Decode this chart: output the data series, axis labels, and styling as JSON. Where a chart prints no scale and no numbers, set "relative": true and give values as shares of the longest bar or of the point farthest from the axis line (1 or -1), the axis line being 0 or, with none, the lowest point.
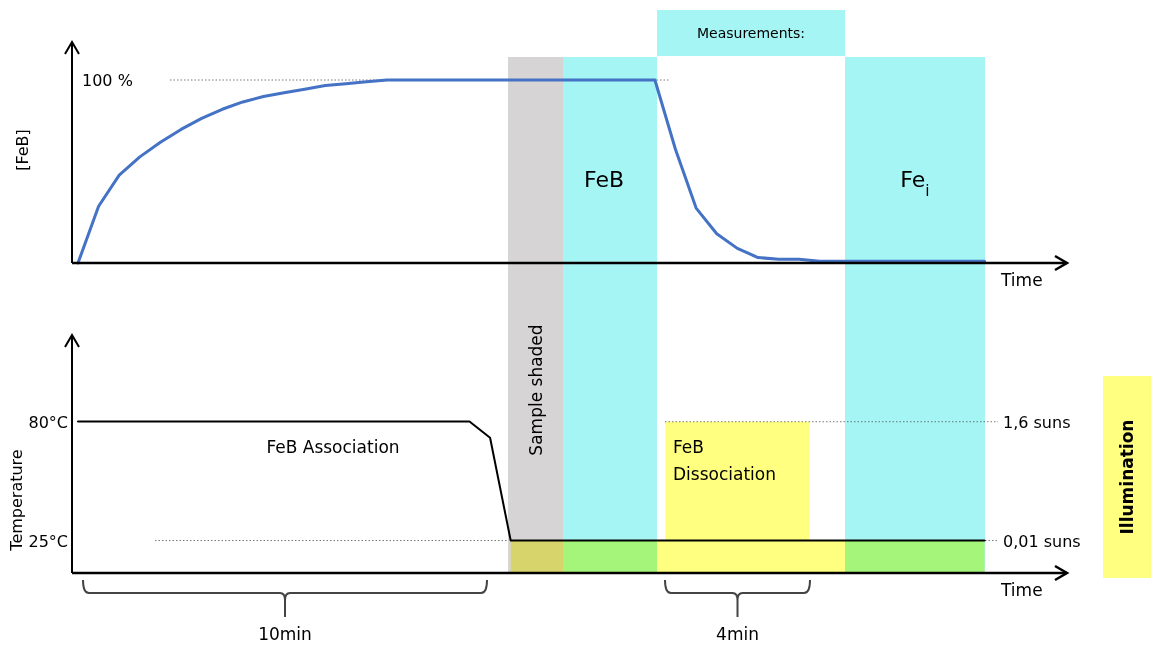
{
  "chart_data": [
    {
      "type": "line",
      "relative": true,
      "ylabel": "[FeB]",
      "xlabel": "Time",
      "categories": [
        null,
        null,
        null,
        null,
        null,
        null,
        null,
        null,
        null,
        null,
        null,
        null,
        null,
        null,
        null,
        null,
        null,
        null,
        null,
        null,
        null,
        null,
        null,
        null,
        null,
        null,
        null,
        null,
        null,
        null,
        null,
        null,
        null,
        null,
        null,
        null,
        null,
        null,
        null,
        null,
        null,
        null,
        null,
        null,
        null,
        null,
        null,
        null,
        null
      ],
      "series": [
        {
          "color": "#4472c4",
          "values": [
            0,
            0.31,
            0.48,
            0.58,
            0.66,
            0.73,
            0.79,
            0.84,
            0.88,
            0.91,
            0.93,
            0.95,
            0.97,
            0.98,
            0.99,
            1,
            1,
            1,
            1,
            1,
            1,
            1,
            1,
            1,
            1,
            1,
            1,
            1,
            1,
            0.62,
            0.3,
            0.16,
            0.08,
            0.03,
            0.02,
            0.02,
            0.01,
            0.01,
            0.01,
            0.01,
            0.01,
            0.01,
            0.01,
            0.01,
            0.01,
            null,
            null,
            null,
            null
          ]
        }
      ],
      "ref_lines": [
        {
          "axis": "y",
          "value": 1,
          "label": "100 %",
          "line_style": "dotted"
        }
      ],
      "annotations": [
        "Measurements:",
        "FeB",
        "Fe$_{i}$"
      ]
    },
    {
      "type": "line",
      "xlabel": "Time",
      "ylabel": "Temperature",
      "y2label": "Illumination",
      "ylim": [
        10,
        120
      ],
      "categories": [
        null,
        null,
        null,
        null,
        null,
        null,
        null,
        null,
        null,
        null,
        null,
        null,
        null,
        null,
        null,
        null,
        null,
        null,
        null,
        null,
        null,
        null,
        null,
        null,
        null,
        null,
        null,
        null,
        null,
        null,
        null,
        null,
        null,
        null,
        null,
        null,
        null,
        null,
        null,
        null,
        null,
        null,
        null,
        null,
        null,
        null,
        null,
        null,
        null
      ],
      "yticks": [
        {
          "value": 80,
          "label": "80°C"
        },
        {
          "value": 25,
          "label": "25°C"
        }
      ],
      "y2lim": [
        0.0025,
        65
      ],
      "y2ticks": [
        {
          "value": 1.6,
          "label": "1,6 suns"
        },
        {
          "value": 0.01,
          "label": "0,01 suns"
        }
      ],
      "log": "y2",
      "series": [
        {
          "color": "#000000",
          "values": [
            80,
            80,
            80,
            80,
            80,
            80,
            80,
            80,
            80,
            80,
            80,
            80,
            80,
            80,
            80,
            80,
            80,
            80,
            80,
            80,
            72.5,
            25,
            25,
            25,
            25,
            25,
            25,
            25,
            25,
            25,
            25,
            25,
            25,
            25,
            25,
            25,
            25,
            25,
            25,
            25,
            25,
            25,
            25,
            25,
            25,
            null,
            null,
            null,
            null
          ]
        },
        {
          "type": "area",
          "axis": "y2",
          "color": "#ffff80",
          "values": [
            null,
            null,
            null,
            null,
            null,
            null,
            null,
            null,
            null,
            null,
            null,
            null,
            null,
            null,
            null,
            null,
            null,
            null,
            null,
            null,
            null,
            0.01,
            0.01,
            0.01,
            0.01,
            0.01,
            0.01,
            0.01,
            0.01,
            1.6,
            1.6,
            1.6,
            1.6,
            1.6,
            1.6,
            1.6,
            0.01,
            0.01,
            0.01,
            0.01,
            0.01,
            0.01,
            0.01,
            0.01,
            0.01,
            null,
            null,
            null,
            null
          ]
        }
      ],
      "ref_lines": [
        {
          "axis": "y",
          "value": 25,
          "line_style": "dotted"
        }
      ],
      "annotations": [
        "Sample shaded",
        "FeB Association",
        "FeB\nDissociation",
        "10min",
        "4min"
      ]
    }
  ]
}
